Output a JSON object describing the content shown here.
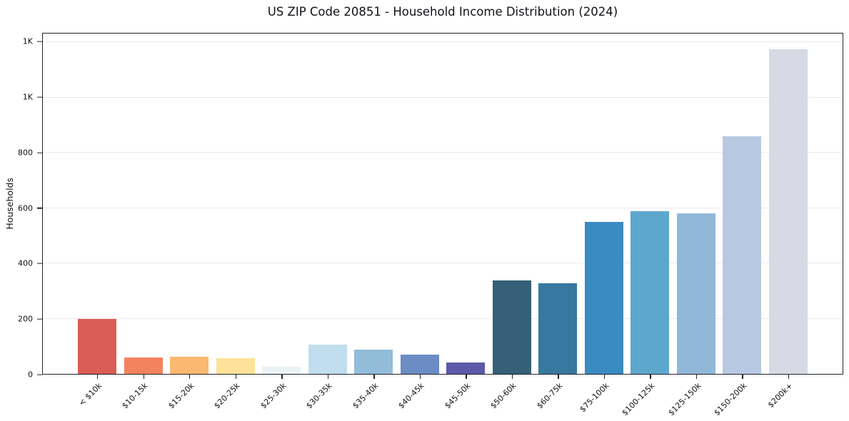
{
  "chart_data": {
    "type": "bar",
    "title": "US ZIP Code 20851 - Household Income Distribution (2024)",
    "xlabel": "",
    "ylabel": "Households",
    "categories": [
      "< $10k",
      "$10-15k",
      "$15-20k",
      "$20-25k",
      "$25-30k",
      "$30-35k",
      "$35-40k",
      "$40-45k",
      "$45-50k",
      "$50-60k",
      "$60-75k",
      "$75-100k",
      "$100-125k",
      "$125-150k",
      "$150-200k",
      "$200k+"
    ],
    "values": [
      200,
      60,
      62,
      56,
      25,
      105,
      88,
      70,
      42,
      339,
      327,
      549,
      588,
      580,
      861,
      1174
    ],
    "colors": [
      "#da5c55",
      "#f3835e",
      "#fbb870",
      "#fde29a",
      "#e9f2f6",
      "#c0deee",
      "#92bcd8",
      "#6b8cc4",
      "#5b59a8",
      "#356077",
      "#36789f",
      "#3a8bc0",
      "#5ea7cc",
      "#92b8d8",
      "#b7c9e2",
      "#d7d9e5"
    ],
    "ylim": [
      0,
      1232
    ],
    "y_ticks": {
      "values": [
        0,
        200,
        400,
        600,
        800,
        1000,
        1200
      ],
      "labels": [
        "0",
        "200",
        "400",
        "600",
        "800",
        "1K",
        "1K"
      ]
    },
    "grid": "horizontal",
    "legend": "none",
    "axis_color": "#22222e",
    "grid_color": "#e9e9f0"
  }
}
